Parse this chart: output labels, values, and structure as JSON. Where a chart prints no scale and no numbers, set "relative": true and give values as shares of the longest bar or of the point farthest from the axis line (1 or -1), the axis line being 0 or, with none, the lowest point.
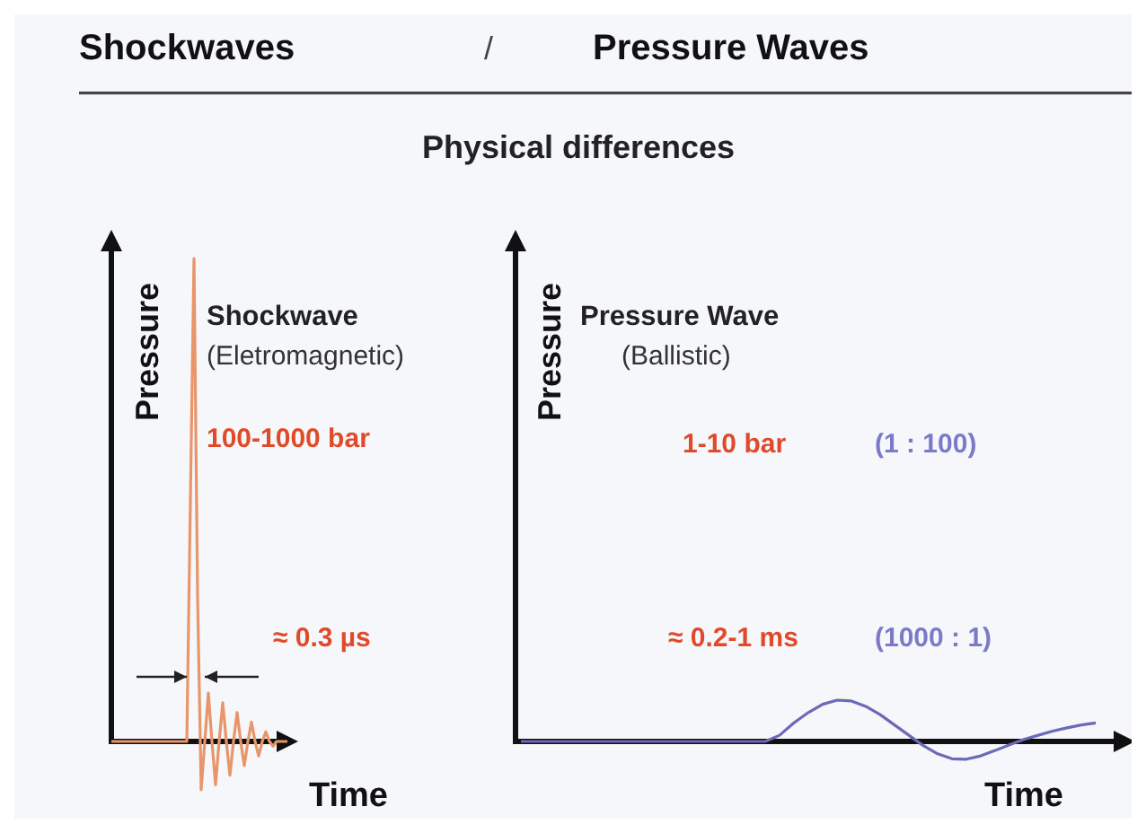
{
  "chart_data": [
    {
      "type": "line",
      "title": "Shockwaves",
      "xlabel": "Time",
      "ylabel": "Pressure",
      "relative": true,
      "annotations": [
        "/",
        "(Eletromagnetic)",
        "100-1000 bar",
        "≈ 0.3 µs"
      ],
      "categories": [
        null,
        null,
        null,
        null,
        null,
        null,
        null,
        null,
        null,
        null,
        null,
        null,
        null,
        null,
        null,
        null,
        null,
        null,
        null,
        null,
        null,
        null,
        null,
        null,
        null,
        null,
        null,
        null,
        null,
        null,
        null,
        null,
        null,
        null,
        null,
        null,
        null,
        null,
        null,
        null,
        null,
        null,
        null,
        null,
        null,
        null,
        null,
        null,
        null,
        null
      ],
      "series": [
        {
          "name": "Shockwave",
          "color": "#e8956a",
          "values": [
            0,
            0,
            0,
            0,
            0,
            0,
            0,
            0,
            0,
            0,
            0,
            0,
            0,
            0,
            0,
            0,
            0,
            0,
            0,
            0,
            0,
            0,
            0.5,
            1,
            0.3,
            -0.1,
            0,
            0.1,
            0,
            -0.09,
            0,
            0.08,
            0,
            -0.07,
            0,
            0.06,
            0,
            -0.05,
            0,
            0.04,
            0,
            -0.03,
            0,
            0.02,
            0,
            -0.01,
            0,
            0,
            0,
            0
          ]
        }
      ]
    },
    {
      "type": "line",
      "title": "Pressure Waves",
      "subtitle": "Physical differences",
      "xlabel": "Time",
      "ylabel": "Pressure",
      "relative": true,
      "annotations": [
        "(Ballistic)",
        "1-10  bar",
        "(1 : 100)",
        "≈ 0.2-1 ms",
        "(1000 : 1)"
      ],
      "categories": [
        null,
        null,
        null,
        null,
        null,
        null,
        null,
        null,
        null,
        null,
        null,
        null,
        null,
        null,
        null,
        null,
        null,
        null,
        null,
        null,
        null,
        null,
        null,
        null,
        null,
        null,
        null,
        null,
        null,
        null,
        null,
        null,
        null,
        null,
        null,
        null,
        null,
        null,
        null,
        null,
        null
      ],
      "series": [
        {
          "name": "Pressure Wave",
          "color": "#6a6ab8",
          "values": [
            0,
            0,
            0,
            0,
            0,
            0,
            0,
            0,
            0,
            0,
            0,
            0,
            0,
            0,
            0,
            0,
            0,
            0,
            0.15,
            0.45,
            0.7,
            0.9,
            1,
            0.98,
            0.85,
            0.65,
            0.4,
            0.15,
            -0.1,
            -0.3,
            -0.42,
            -0.43,
            -0.35,
            -0.22,
            -0.08,
            0.05,
            0.15,
            0.25,
            0.33,
            0.4,
            0.45
          ]
        }
      ]
    }
  ]
}
